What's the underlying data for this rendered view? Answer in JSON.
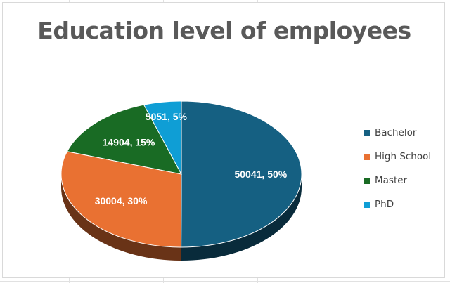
{
  "chart_data": {
    "type": "pie",
    "title": "Education level of employees",
    "categories": [
      "Bachelor",
      "High School",
      "Master",
      "PhD"
    ],
    "values": [
      50041,
      30004,
      14904,
      5051
    ],
    "data_labels": [
      "50041, 50%",
      "30004, 30%",
      "14904, 15%",
      "5051, 5%"
    ],
    "colors": [
      "#156082",
      "#e97132",
      "#196b24",
      "#0f9ed5"
    ],
    "legend_position": "right",
    "style": "3d"
  }
}
